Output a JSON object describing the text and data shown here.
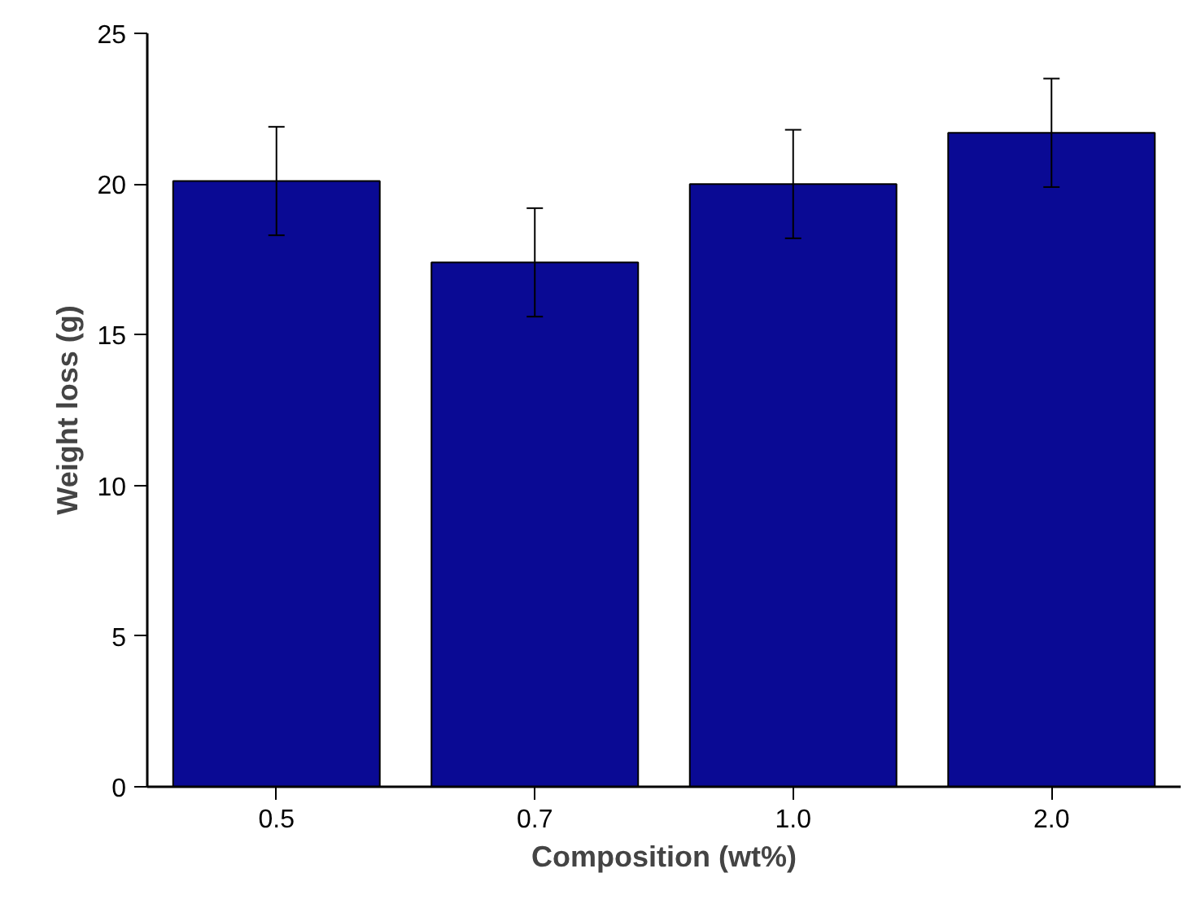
{
  "chart_data": {
    "type": "bar",
    "xlabel": "Composition (wt%)",
    "ylabel": "Weight loss (g)",
    "categories": [
      "0.5",
      "0.7",
      "1.0",
      "2.0"
    ],
    "values": [
      20.1,
      17.4,
      20.0,
      21.7
    ],
    "errors": [
      1.8,
      1.8,
      1.8,
      1.8
    ],
    "color": "#0a0a94",
    "ylim": [
      0,
      25
    ],
    "yticks": [
      0,
      5,
      10,
      15,
      20,
      25
    ],
    "grid": false
  }
}
